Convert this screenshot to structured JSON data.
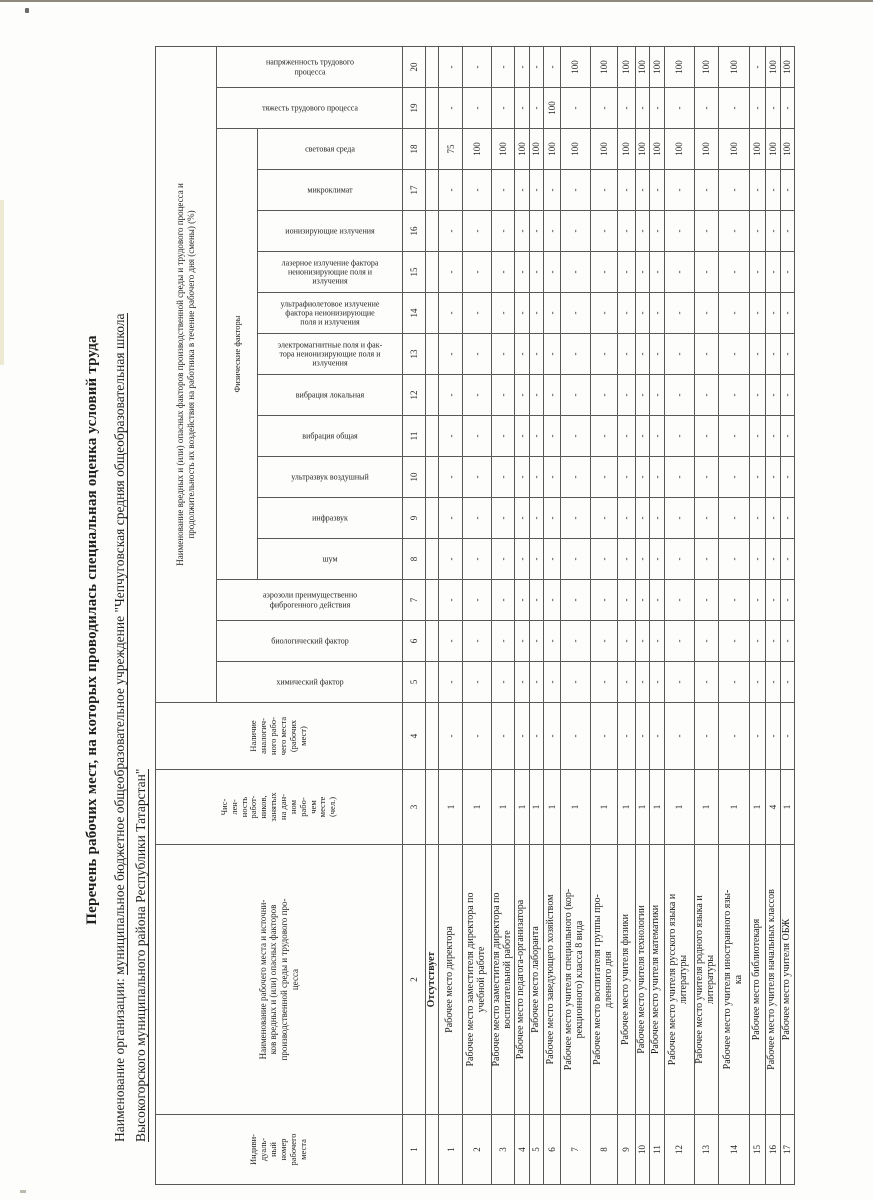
{
  "document": {
    "title": "Перечень рабочих мест, на которых проводилась специальная оценка условий труда",
    "org_label": "Наименование организации:",
    "org_value_line1": "муниципальное бюджетное общеобразовательное учреждение \"Чепчуговская средняя общеобразовательная школа",
    "org_value_line2": "Высокогорского муниципального района Республики Татарстан\""
  },
  "table": {
    "headers": {
      "col1": "Индиви-\nдуаль-\nный\nномер\nрабочего\nместа",
      "col2": "Наименование рабочего места и источни-\nков вредных и (или) опасных факторов\nпроизводственной среды и трудового про-\nцесса",
      "col3": "Чис-\nлен-\nность\nработ-\nников,\nзанятых\nна дан-\nном\nрабо-\nчем\nместе\n(чел.)",
      "col4": "Наличие\nаналогич-\nного рабо-\nчего места\n(рабочих\nмест)",
      "factors_group": "Наименование вредных и (или) опасных факторов производственной среды и трудового процесса и\nпродолжительность их воздействия на работника в течение рабочего дня (смены) (%)",
      "physical_group": "Физические факторы"
    },
    "factor_columns": [
      {
        "num": "5",
        "label": "химический фактор",
        "group": "other"
      },
      {
        "num": "6",
        "label": "биологический фактор",
        "group": "other"
      },
      {
        "num": "7",
        "label": "аэрозоли преимущественно\nфиброгенного действия",
        "group": "other"
      },
      {
        "num": "8",
        "label": "шум",
        "group": "phys"
      },
      {
        "num": "9",
        "label": "инфразвук",
        "group": "phys"
      },
      {
        "num": "10",
        "label": "ультразвук воздушный",
        "group": "phys"
      },
      {
        "num": "11",
        "label": "вибрация общая",
        "group": "phys"
      },
      {
        "num": "12",
        "label": "вибрация локальная",
        "group": "phys"
      },
      {
        "num": "13",
        "label": "электромагнитные поля и фак-\nтора неионизирующие поля и\nизлучения",
        "group": "phys"
      },
      {
        "num": "14",
        "label": "ультрафиолетовое излучение\nфактора неионизирующие\nполя и излучения",
        "group": "phys"
      },
      {
        "num": "15",
        "label": "лазерное излучение фактора\nнеионизирующие поля и\nизлучения",
        "group": "phys"
      },
      {
        "num": "16",
        "label": "ионизирующие излучения",
        "group": "phys"
      },
      {
        "num": "17",
        "label": "микроклимат",
        "group": "phys"
      },
      {
        "num": "18",
        "label": "световая среда",
        "group": "phys"
      },
      {
        "num": "19",
        "label": "тяжесть трудового процесса",
        "group": "other"
      },
      {
        "num": "20",
        "label": "напряженность трудового\nпроцесса",
        "group": "other"
      }
    ],
    "column_numbers": [
      "1",
      "2",
      "3",
      "4",
      "5",
      "6",
      "7",
      "8",
      "9",
      "10",
      "11",
      "12",
      "13",
      "14",
      "15",
      "16",
      "17",
      "18",
      "19",
      "20"
    ],
    "section_row_label": "Отсутствует",
    "rows": [
      {
        "num": "1",
        "name": "Рабочее место директора",
        "count": "1",
        "analog": "-",
        "factors": [
          "-",
          "-",
          "-",
          "-",
          "-",
          "-",
          "-",
          "-",
          "-",
          "-",
          "-",
          "-",
          "-",
          "75",
          "-",
          "-"
        ]
      },
      {
        "num": "2",
        "name": "Рабочее место заместителя директора по\nучебной работе",
        "count": "1",
        "analog": "-",
        "factors": [
          "-",
          "-",
          "-",
          "-",
          "-",
          "-",
          "-",
          "-",
          "-",
          "-",
          "-",
          "-",
          "-",
          "100",
          "-",
          "-"
        ]
      },
      {
        "num": "3",
        "name": "Рабочее место заместителя директора по\nвоспитательной работе",
        "count": "1",
        "analog": "-",
        "factors": [
          "-",
          "-",
          "-",
          "-",
          "-",
          "-",
          "-",
          "-",
          "-",
          "-",
          "-",
          "-",
          "-",
          "100",
          "-",
          "-"
        ]
      },
      {
        "num": "4",
        "name": "Рабочее место педагога-организатора",
        "count": "1",
        "analog": "-",
        "factors": [
          "-",
          "-",
          "-",
          "-",
          "-",
          "-",
          "-",
          "-",
          "-",
          "-",
          "-",
          "-",
          "-",
          "100",
          "-",
          "-"
        ]
      },
      {
        "num": "5",
        "name": "Рабочее место лаборанта",
        "count": "1",
        "analog": "-",
        "factors": [
          "-",
          "-",
          "-",
          "-",
          "-",
          "-",
          "-",
          "-",
          "-",
          "-",
          "-",
          "-",
          "-",
          "100",
          "-",
          "-"
        ]
      },
      {
        "num": "6",
        "name": "Рабочее место заведующего хозяйством",
        "count": "1",
        "analog": "-",
        "factors": [
          "-",
          "-",
          "-",
          "-",
          "-",
          "-",
          "-",
          "-",
          "-",
          "-",
          "-",
          "-",
          "-",
          "100",
          "100",
          "-"
        ]
      },
      {
        "num": "7",
        "name": "Рабочее место учителя специального (кор-\nрекционного) класса 8 вида",
        "count": "1",
        "analog": "-",
        "factors": [
          "-",
          "-",
          "-",
          "-",
          "-",
          "-",
          "-",
          "-",
          "-",
          "-",
          "-",
          "-",
          "-",
          "100",
          "-",
          "100"
        ]
      },
      {
        "num": "8",
        "name": "Рабочее место воспитателя группы про-\nдленного дня",
        "count": "1",
        "analog": "-",
        "factors": [
          "-",
          "-",
          "-",
          "-",
          "-",
          "-",
          "-",
          "-",
          "-",
          "-",
          "-",
          "-",
          "-",
          "100",
          "-",
          "100"
        ]
      },
      {
        "num": "9",
        "name": "Рабочее место учителя физики",
        "count": "1",
        "analog": "-",
        "factors": [
          "-",
          "-",
          "-",
          "-",
          "-",
          "-",
          "-",
          "-",
          "-",
          "-",
          "-",
          "-",
          "-",
          "100",
          "-",
          "100"
        ]
      },
      {
        "num": "10",
        "name": "Рабочее место учителя технологии",
        "count": "1",
        "analog": "-",
        "factors": [
          "-",
          "-",
          "-",
          "-",
          "-",
          "-",
          "-",
          "-",
          "-",
          "-",
          "-",
          "-",
          "-",
          "100",
          "-",
          "100"
        ]
      },
      {
        "num": "11",
        "name": "Рабочее место учителя математики",
        "count": "1",
        "analog": "-",
        "factors": [
          "-",
          "-",
          "-",
          "-",
          "-",
          "-",
          "-",
          "-",
          "-",
          "-",
          "-",
          "-",
          "-",
          "100",
          "-",
          "100"
        ]
      },
      {
        "num": "12",
        "name": "Рабочее место учителя русского языка и\nлитературы",
        "count": "1",
        "analog": "-",
        "factors": [
          "-",
          "-",
          "-",
          "-",
          "-",
          "-",
          "-",
          "-",
          "-",
          "-",
          "-",
          "-",
          "-",
          "100",
          "-",
          "100"
        ]
      },
      {
        "num": "13",
        "name": "Рабочее место учителя родного языка и\nлитературы",
        "count": "1",
        "analog": "-",
        "factors": [
          "-",
          "-",
          "-",
          "-",
          "-",
          "-",
          "-",
          "-",
          "-",
          "-",
          "-",
          "-",
          "-",
          "100",
          "-",
          "100"
        ]
      },
      {
        "num": "14",
        "name": "Рабочее место учителя иностранного язы-\nка",
        "count": "1",
        "analog": "-",
        "factors": [
          "-",
          "-",
          "-",
          "-",
          "-",
          "-",
          "-",
          "-",
          "-",
          "-",
          "-",
          "-",
          "-",
          "100",
          "-",
          "100"
        ]
      },
      {
        "num": "15",
        "name": "Рабочее место библиотекаря",
        "count": "1",
        "analog": "-",
        "factors": [
          "-",
          "-",
          "-",
          "-",
          "-",
          "-",
          "-",
          "-",
          "-",
          "-",
          "-",
          "-",
          "-",
          "100",
          "-",
          "-"
        ]
      },
      {
        "num": "16",
        "name": "Рабочее место учителя начальных классов",
        "count": "4",
        "analog": "-",
        "factors": [
          "-",
          "-",
          "-",
          "-",
          "-",
          "-",
          "-",
          "-",
          "-",
          "-",
          "-",
          "-",
          "-",
          "100",
          "-",
          "100"
        ]
      },
      {
        "num": "17",
        "name": "Рабочее место учителя ОБЖ",
        "count": "1",
        "analog": "-",
        "factors": [
          "-",
          "-",
          "-",
          "-",
          "-",
          "-",
          "-",
          "-",
          "-",
          "-",
          "-",
          "-",
          "-",
          "100",
          "-",
          "100"
        ]
      }
    ]
  }
}
